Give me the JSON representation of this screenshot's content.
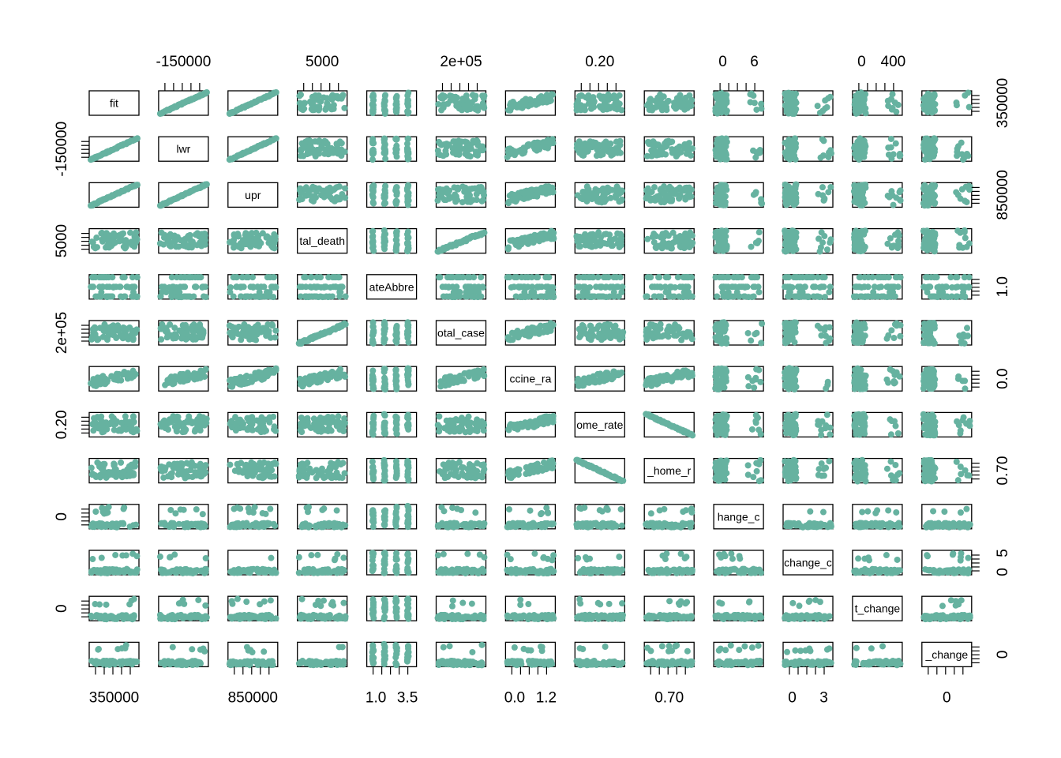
{
  "chart_data": {
    "type": "scatter",
    "variables": [
      "fit",
      "lwr",
      "upr",
      "total_deaths",
      "StateAbbrev",
      "total_cases",
      "vaccine_rate",
      "home_rate",
      "not_home_rate",
      "change_d",
      "change_c",
      "change_x",
      "change_y"
    ],
    "diagonal_labels": [
      "fit",
      "lwr",
      "upr",
      "tal_death",
      "ateAbbre",
      "otal_case",
      "ccine_ra",
      "ome_rate",
      "_home_r",
      "hange_c",
      "change_c",
      "t_change",
      "_change"
    ],
    "marker_color": "#66B2A0",
    "axis_labels": {
      "top": [
        {
          "col": 1,
          "text": "-150000"
        },
        {
          "col": 3,
          "text": "5000"
        },
        {
          "col": 5,
          "text": "2e+05"
        },
        {
          "col": 7,
          "text": "0.20"
        },
        {
          "col": 9,
          "text": "0"
        },
        {
          "col": 9,
          "text": "6"
        },
        {
          "col": 11,
          "text": "0"
        },
        {
          "col": 11,
          "text": "400"
        }
      ],
      "bottom": [
        {
          "col": 0,
          "text": "350000"
        },
        {
          "col": 2,
          "text": "850000"
        },
        {
          "col": 4,
          "text": "1.0"
        },
        {
          "col": 4,
          "text": "3.5"
        },
        {
          "col": 6,
          "text": "0.0"
        },
        {
          "col": 6,
          "text": "1.2"
        },
        {
          "col": 8,
          "text": "0.70"
        },
        {
          "col": 10,
          "text": "0"
        },
        {
          "col": 10,
          "text": "3"
        },
        {
          "col": 12,
          "text": "0"
        }
      ],
      "left": [
        {
          "row": 1,
          "text": "-150000"
        },
        {
          "row": 3,
          "text": "5000"
        },
        {
          "row": 5,
          "text": "2e+05"
        },
        {
          "row": 7,
          "text": "0.20"
        },
        {
          "row": 9,
          "text": "0"
        },
        {
          "row": 11,
          "text": "0"
        }
      ],
      "right": [
        {
          "row": 0,
          "text": "350000"
        },
        {
          "row": 2,
          "text": "850000"
        },
        {
          "row": 4,
          "text": "1.0"
        },
        {
          "row": 6,
          "text": "0.0"
        },
        {
          "row": 8,
          "text": "0.70"
        },
        {
          "row": 10,
          "text": "0"
        },
        {
          "row": 10,
          "text": "5"
        },
        {
          "row": 12,
          "text": "0"
        }
      ]
    },
    "grid": false,
    "legend": "none"
  }
}
